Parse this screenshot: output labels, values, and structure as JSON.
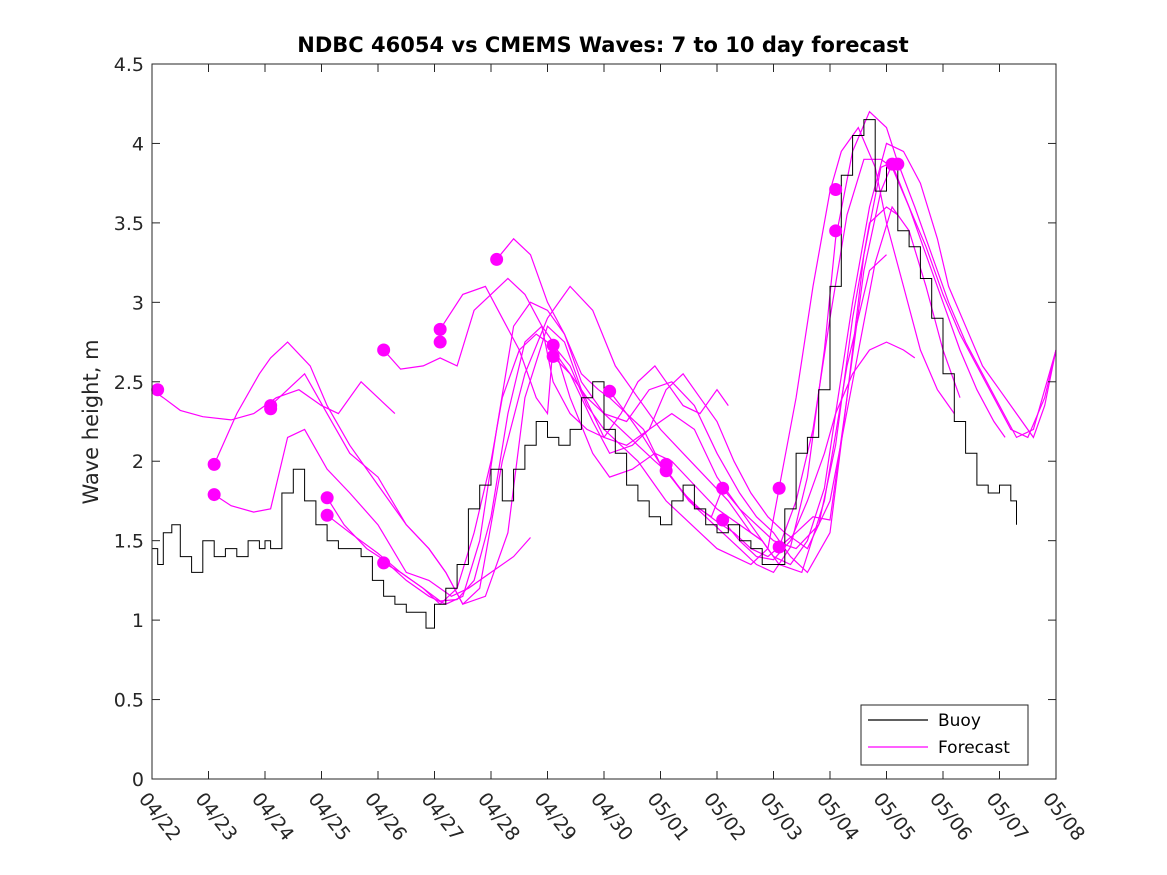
{
  "chart_data": {
    "type": "line",
    "title": "NDBC 46054 vs CMEMS Waves: 7 to 10 day forecast",
    "xlabel": "",
    "ylabel": "Wave height, m",
    "xlim": [
      0,
      16
    ],
    "ylim": [
      0,
      4.5
    ],
    "yticks": [
      "0",
      "0.5",
      "1",
      "1.5",
      "2",
      "2.5",
      "3",
      "3.5",
      "4",
      "4.5"
    ],
    "xtick_labels": [
      "04/22",
      "04/23",
      "04/24",
      "04/25",
      "04/26",
      "04/27",
      "04/28",
      "04/29",
      "04/30",
      "05/01",
      "05/02",
      "05/03",
      "05/04",
      "05/05",
      "05/06",
      "05/07",
      "05/08"
    ],
    "x_units": "days since 04/22",
    "legend": {
      "position": "bottom-right",
      "entries": [
        {
          "name": "Buoy",
          "color": "#000000"
        },
        {
          "name": "Forecast",
          "color": "#ff00ff"
        }
      ]
    },
    "colors": {
      "buoy": "#000000",
      "forecast": "#ff00ff"
    },
    "buoy": {
      "name": "Buoy",
      "x": [
        0,
        0.1,
        0.2,
        0.35,
        0.5,
        0.7,
        0.9,
        1.1,
        1.3,
        1.5,
        1.7,
        1.9,
        2.0,
        2.1,
        2.3,
        2.5,
        2.7,
        2.9,
        3.1,
        3.3,
        3.5,
        3.7,
        3.9,
        4.1,
        4.3,
        4.5,
        4.7,
        4.85,
        5.0,
        5.2,
        5.4,
        5.6,
        5.8,
        6.0,
        6.2,
        6.4,
        6.6,
        6.8,
        7.0,
        7.2,
        7.4,
        7.6,
        7.8,
        8.0,
        8.2,
        8.4,
        8.6,
        8.8,
        9.0,
        9.2,
        9.4,
        9.6,
        9.8,
        10.0,
        10.2,
        10.4,
        10.6,
        10.8,
        11.0,
        11.2,
        11.4,
        11.6,
        11.8,
        12.0,
        12.2,
        12.4,
        12.6,
        12.8,
        13.0,
        13.2,
        13.4,
        13.6,
        13.8,
        14.0,
        14.2,
        14.4,
        14.6,
        14.8,
        15.0,
        15.2,
        15.3
      ],
      "values": [
        1.45,
        1.35,
        1.55,
        1.6,
        1.4,
        1.3,
        1.5,
        1.4,
        1.45,
        1.4,
        1.5,
        1.45,
        1.5,
        1.45,
        1.8,
        1.95,
        1.75,
        1.6,
        1.5,
        1.45,
        1.45,
        1.4,
        1.25,
        1.15,
        1.1,
        1.05,
        1.05,
        0.95,
        1.1,
        1.2,
        1.35,
        1.7,
        1.85,
        1.95,
        1.75,
        1.95,
        2.1,
        2.25,
        2.15,
        2.1,
        2.2,
        2.4,
        2.5,
        2.2,
        2.05,
        1.85,
        1.75,
        1.65,
        1.6,
        1.75,
        1.85,
        1.7,
        1.6,
        1.55,
        1.6,
        1.5,
        1.45,
        1.35,
        1.35,
        1.7,
        2.05,
        2.15,
        2.45,
        3.1,
        3.8,
        4.05,
        4.15,
        3.7,
        3.85,
        3.45,
        3.35,
        3.15,
        2.9,
        2.55,
        2.25,
        2.05,
        1.85,
        1.8,
        1.85,
        1.75,
        1.6
      ]
    },
    "series": [
      {
        "name": "Forecast",
        "x": [
          0,
          0.2,
          0.5,
          0.9,
          1.4,
          1.8,
          2.2,
          2.6,
          3.0,
          3.3,
          3.7,
          4.0,
          4.3
        ],
        "values": [
          2.45,
          2.4,
          2.32,
          2.28,
          2.26,
          2.3,
          2.4,
          2.45,
          2.35,
          2.3,
          2.5,
          2.4,
          2.3
        ]
      },
      {
        "name": "Forecast",
        "x": [
          1.1,
          1.5,
          1.9,
          2.1,
          2.4,
          2.8,
          3.1,
          3.5,
          4.0,
          4.5,
          4.9,
          5.2,
          5.5,
          5.8,
          6.2,
          6.6,
          7.0,
          7.4,
          7.8,
          8.2,
          8.6,
          9.0,
          9.4,
          9.8,
          10.2,
          10.6,
          10.8
        ],
        "values": [
          1.98,
          2.3,
          2.55,
          2.65,
          2.75,
          2.6,
          2.35,
          2.1,
          1.85,
          1.6,
          1.45,
          1.3,
          1.1,
          1.2,
          2.0,
          2.55,
          2.9,
          3.1,
          2.95,
          2.6,
          2.4,
          2.2,
          2.05,
          1.9,
          1.75,
          1.55,
          1.5
        ]
      },
      {
        "name": "Forecast",
        "x": [
          1.1,
          1.4,
          1.8,
          2.1,
          2.4,
          2.7,
          3.1,
          3.5,
          4.0,
          4.5,
          4.9,
          5.3,
          5.6,
          6.0,
          6.4,
          6.7
        ],
        "values": [
          1.79,
          1.72,
          1.68,
          1.7,
          2.15,
          2.2,
          1.95,
          1.8,
          1.6,
          1.3,
          1.25,
          1.15,
          1.2,
          1.3,
          1.4,
          1.52
        ]
      },
      {
        "name": "Forecast",
        "x": [
          2.1,
          2.4,
          2.7,
          3.1,
          3.5,
          4.0,
          4.5,
          4.9,
          5.2,
          5.5,
          5.9,
          6.3,
          6.6,
          7.0,
          7.3,
          7.6,
          8.0,
          8.4,
          8.8,
          9.2,
          9.6,
          10.0,
          10.4,
          10.7,
          11.0,
          11.4,
          11.8,
          12.1,
          12.4,
          12.7,
          13.0,
          13.2
        ],
        "values": [
          2.35,
          2.45,
          2.55,
          2.3,
          2.05,
          1.9,
          1.6,
          1.45,
          1.3,
          1.1,
          1.15,
          1.55,
          2.4,
          2.85,
          2.75,
          2.45,
          2.15,
          2.1,
          2.2,
          2.3,
          2.2,
          1.9,
          1.7,
          1.6,
          1.5,
          1.45,
          1.6,
          2.1,
          2.9,
          3.5,
          3.6,
          3.55
        ]
      },
      {
        "name": "Forecast",
        "x": [
          3.1,
          3.4,
          3.8,
          4.1,
          4.5,
          4.9,
          5.2,
          5.5,
          5.8,
          6.1,
          6.4,
          6.7,
          7.0,
          7.3,
          7.6,
          8.0,
          8.4,
          8.8,
          9.2,
          9.6,
          10.0,
          10.4,
          10.7,
          11.0,
          11.3,
          11.6,
          12.0,
          12.3,
          12.6,
          12.9,
          13.1
        ],
        "values": [
          1.77,
          1.6,
          1.45,
          1.38,
          1.25,
          1.15,
          1.1,
          1.15,
          1.5,
          2.2,
          2.85,
          3.0,
          2.95,
          2.8,
          2.5,
          2.3,
          2.25,
          2.45,
          2.5,
          2.35,
          2.05,
          1.8,
          1.65,
          1.55,
          1.4,
          1.3,
          1.55,
          2.4,
          3.3,
          3.85,
          3.88
        ]
      },
      {
        "name": "Forecast",
        "x": [
          3.1,
          3.5,
          4.0,
          4.4,
          4.8,
          5.1,
          5.4,
          5.7,
          6.0,
          6.3,
          6.6,
          6.9,
          7.1,
          7.4,
          7.8,
          8.1,
          8.5,
          8.9,
          9.2,
          9.6,
          10.0,
          10.4,
          10.8,
          11.1,
          11.5,
          11.9,
          12.3,
          12.7,
          13.0
        ],
        "values": [
          1.66,
          1.55,
          1.42,
          1.3,
          1.2,
          1.12,
          1.13,
          1.25,
          1.65,
          2.3,
          2.75,
          2.85,
          2.75,
          2.4,
          2.05,
          1.9,
          1.95,
          2.05,
          2.0,
          1.85,
          1.7,
          1.6,
          1.5,
          1.35,
          1.3,
          1.75,
          2.6,
          3.2,
          3.3
        ]
      },
      {
        "name": "Forecast",
        "x": [
          4.1,
          4.4,
          4.8,
          5.1,
          5.4,
          5.7,
          6.0,
          6.2,
          6.5,
          6.8,
          7.0,
          7.4,
          7.8,
          8.1,
          8.5,
          8.8,
          9.1,
          9.4,
          9.7,
          10.0,
          10.3,
          10.6,
          10.9,
          11.2,
          11.6,
          12.0,
          12.4,
          12.8,
          13.1,
          13.4,
          13.7,
          14.0,
          14.3
        ],
        "values": [
          1.36,
          1.3,
          1.2,
          1.1,
          1.2,
          1.55,
          2.0,
          2.4,
          2.7,
          2.8,
          2.75,
          2.55,
          2.25,
          2.05,
          2.1,
          2.2,
          2.45,
          2.55,
          2.4,
          2.25,
          2.0,
          1.8,
          1.65,
          1.55,
          1.45,
          1.75,
          2.5,
          3.25,
          3.6,
          3.45,
          3.1,
          2.7,
          2.4
        ]
      },
      {
        "name": "Forecast",
        "x": [
          4.1,
          4.4,
          4.8,
          5.1,
          5.4,
          5.7,
          6.0,
          6.3,
          6.6,
          6.9,
          7.1,
          7.4,
          7.7,
          8.0,
          8.3,
          8.6,
          8.9,
          9.1,
          9.4,
          9.7,
          10.0,
          10.2
        ],
        "values": [
          2.7,
          2.58,
          2.6,
          2.65,
          2.6,
          2.95,
          3.05,
          3.15,
          3.05,
          2.85,
          2.5,
          2.3,
          2.2,
          2.15,
          2.3,
          2.5,
          2.6,
          2.5,
          2.35,
          2.3,
          2.45,
          2.35
        ]
      },
      {
        "name": "Forecast",
        "x": [
          5.1,
          5.5,
          5.9,
          6.2,
          6.5,
          6.8,
          7.0,
          7.1,
          7.4,
          7.7,
          8.0,
          8.3,
          8.6,
          8.9,
          9.1,
          9.4,
          9.7,
          10.0,
          10.3,
          10.6,
          10.9,
          11.1,
          11.4,
          11.7,
          12.0,
          12.2,
          12.5,
          12.8,
          13.0,
          13.3,
          13.6,
          13.9,
          14.2
        ],
        "values": [
          2.83,
          3.05,
          3.1,
          2.9,
          2.7,
          2.4,
          2.3,
          2.73,
          2.6,
          2.35,
          2.2,
          2.1,
          2.0,
          1.85,
          1.75,
          1.65,
          1.55,
          1.45,
          1.4,
          1.35,
          1.45,
          1.83,
          2.4,
          3.1,
          3.7,
          3.95,
          4.1,
          3.85,
          3.5,
          3.1,
          2.7,
          2.45,
          2.3
        ]
      },
      {
        "name": "Forecast",
        "x": [
          6.1,
          6.4,
          6.7,
          7.0,
          7.3,
          7.6,
          7.9,
          8.1,
          8.4,
          8.7,
          9.0,
          9.2,
          9.5,
          9.8,
          10.1,
          10.4,
          10.7,
          11.0,
          11.3,
          11.6,
          11.9,
          12.1,
          12.4,
          12.7,
          13.0,
          13.2,
          13.5,
          13.8,
          14.1,
          14.4,
          14.7,
          15.0,
          15.3,
          15.6,
          15.8,
          16.0
        ],
        "values": [
          3.27,
          3.4,
          3.3,
          3.0,
          2.8,
          2.55,
          2.45,
          2.4,
          2.3,
          2.15,
          1.98,
          1.9,
          1.75,
          1.65,
          1.55,
          1.45,
          1.35,
          1.3,
          1.46,
          1.9,
          2.7,
          3.4,
          3.95,
          4.2,
          4.1,
          3.88,
          3.6,
          3.3,
          3.0,
          2.75,
          2.55,
          2.35,
          2.15,
          2.2,
          2.45,
          2.7
        ]
      },
      {
        "name": "Forecast",
        "x": [
          7.1,
          7.4,
          7.7,
          8.0,
          8.3,
          8.6,
          8.9,
          9.1,
          9.4,
          9.7,
          10.0,
          10.3,
          10.6,
          10.9,
          11.1,
          11.4,
          11.7,
          12.0,
          12.3,
          12.6,
          12.9,
          13.1,
          13.4,
          13.7,
          14.0,
          14.3,
          14.6,
          14.9,
          15.2,
          15.5,
          15.8,
          16.0
        ],
        "values": [
          2.66,
          2.55,
          2.4,
          2.3,
          2.2,
          2.1,
          2.0,
          1.94,
          1.8,
          1.7,
          1.62,
          1.55,
          1.45,
          1.4,
          1.46,
          1.75,
          2.2,
          2.9,
          3.55,
          3.9,
          3.9,
          3.85,
          3.6,
          3.35,
          3.05,
          2.8,
          2.6,
          2.4,
          2.2,
          2.15,
          2.4,
          2.7
        ]
      },
      {
        "name": "Forecast",
        "x": [
          8.1,
          8.4,
          8.7,
          9.0,
          9.3,
          9.6,
          9.9,
          10.1,
          10.4,
          10.7,
          11.0,
          11.3,
          11.6,
          11.9,
          12.1,
          12.4,
          12.7,
          13.0,
          13.3,
          13.6,
          13.9,
          14.1,
          14.4,
          14.7,
          15.0,
          15.3,
          15.6,
          15.8,
          16.0
        ],
        "values": [
          2.44,
          2.3,
          2.2,
          1.98,
          1.85,
          1.72,
          1.65,
          1.83,
          1.7,
          1.55,
          1.4,
          1.35,
          1.5,
          1.83,
          2.3,
          3.0,
          3.6,
          4.0,
          3.95,
          3.75,
          3.4,
          3.1,
          2.85,
          2.6,
          2.45,
          2.3,
          2.15,
          2.35,
          2.7
        ]
      },
      {
        "name": "Forecast",
        "x": [
          10.1,
          10.4,
          10.7,
          11.0,
          11.3,
          11.6,
          11.9,
          12.1,
          12.4,
          12.7,
          13.0,
          13.3,
          13.5
        ],
        "values": [
          1.63,
          1.5,
          1.4,
          1.38,
          1.5,
          1.75,
          2.05,
          2.3,
          2.55,
          2.7,
          2.75,
          2.7,
          2.65
        ]
      },
      {
        "name": "Forecast",
        "x": [
          11.1,
          11.4,
          11.7,
          12.0,
          12.3,
          12.6,
          12.9,
          13.1,
          13.4,
          13.7,
          14.0,
          14.3,
          14.6,
          14.9,
          15.1
        ],
        "values": [
          1.46,
          1.55,
          1.65,
          1.63,
          2.4,
          3.2,
          3.7,
          3.87,
          3.6,
          3.3,
          3.0,
          2.7,
          2.45,
          2.25,
          2.15
        ]
      }
    ],
    "markers": {
      "x": [
        0.1,
        1.1,
        1.1,
        2.1,
        2.1,
        3.1,
        3.1,
        4.1,
        4.1,
        5.1,
        5.1,
        6.1,
        7.1,
        7.1,
        8.1,
        9.1,
        9.1,
        10.1,
        10.1,
        11.1,
        11.1,
        12.1,
        12.1,
        13.1,
        13.2
      ],
      "values": [
        2.45,
        1.98,
        1.79,
        2.35,
        2.33,
        1.77,
        1.66,
        2.7,
        1.36,
        2.83,
        2.75,
        3.27,
        2.73,
        2.66,
        2.44,
        1.98,
        1.94,
        1.83,
        1.63,
        1.83,
        1.46,
        3.71,
        3.45,
        3.87,
        3.87
      ]
    }
  }
}
